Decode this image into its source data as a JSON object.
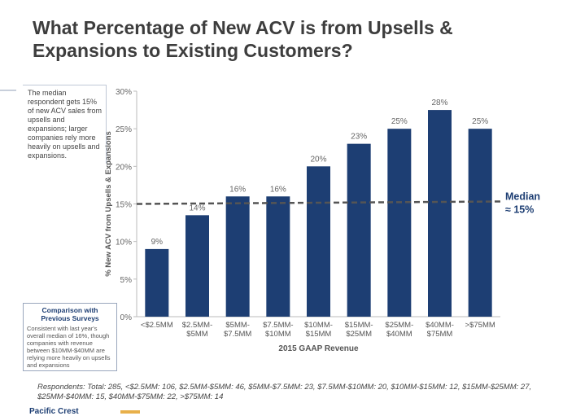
{
  "title": "What Percentage of New ACV is from Upsells & Expansions to Existing Customers?",
  "sidebar_note": "The median respondent gets 15% of new ACV sales from upsells and expansions; larger companies rely more heavily on upsells and expansions.",
  "comparison": {
    "title": "Comparison with Previous Surveys",
    "body": "Consistent with last year's overall median of 16%, though companies with revenue between $10MM-$40MM are relying more heavily on upsells and expansions"
  },
  "footnote": "Respondents: Total: 285, <$2.5MM: 106, $2.5MM-$5MM: 46, $5MM-$7.5MM: 23, $7.5MM-$10MM: 20, $10MM-$15MM: 12, $15MM-$25MM: 27, $25MM-$40MM: 15, $40MM-$75MM: 22, >$75MM: 14",
  "footer": {
    "logo_text": "Pacific Crest"
  },
  "colors": {
    "bar": "#1d3e73",
    "median_line": "#555555",
    "median_label": "#1d3e73"
  },
  "chart_data": {
    "type": "bar",
    "title": "What Percentage of New ACV is from Upsells & Expansions to Existing Customers?",
    "xlabel": "2015 GAAP Revenue",
    "ylabel": "% New ACV from Upsells & Expansions",
    "ylim": [
      0,
      30
    ],
    "yticks": [
      0,
      5,
      10,
      15,
      20,
      25,
      30
    ],
    "ytick_labels": [
      "0%",
      "5%",
      "10%",
      "15%",
      "20%",
      "25%",
      "30%"
    ],
    "categories": [
      [
        "<$2.5MM"
      ],
      [
        "$2.5MM-",
        "$5MM"
      ],
      [
        "$5MM-",
        "$7.5MM"
      ],
      [
        "$7.5MM-",
        "$10MM"
      ],
      [
        "$10MM-",
        "$15MM"
      ],
      [
        "$15MM-",
        "$25MM"
      ],
      [
        "$25MM-",
        "$40MM"
      ],
      [
        "$40MM-",
        "$75MM"
      ],
      [
        ">$75MM"
      ]
    ],
    "values": [
      9,
      13.5,
      16,
      16,
      20,
      23,
      25,
      27.5,
      25
    ],
    "value_labels": [
      "9%",
      "14%",
      "16%",
      "16%",
      "20%",
      "23%",
      "25%",
      "28%",
      "25%"
    ],
    "median": {
      "value": 15,
      "label_line1": "Median",
      "label_line2": "≈ 15%"
    }
  }
}
